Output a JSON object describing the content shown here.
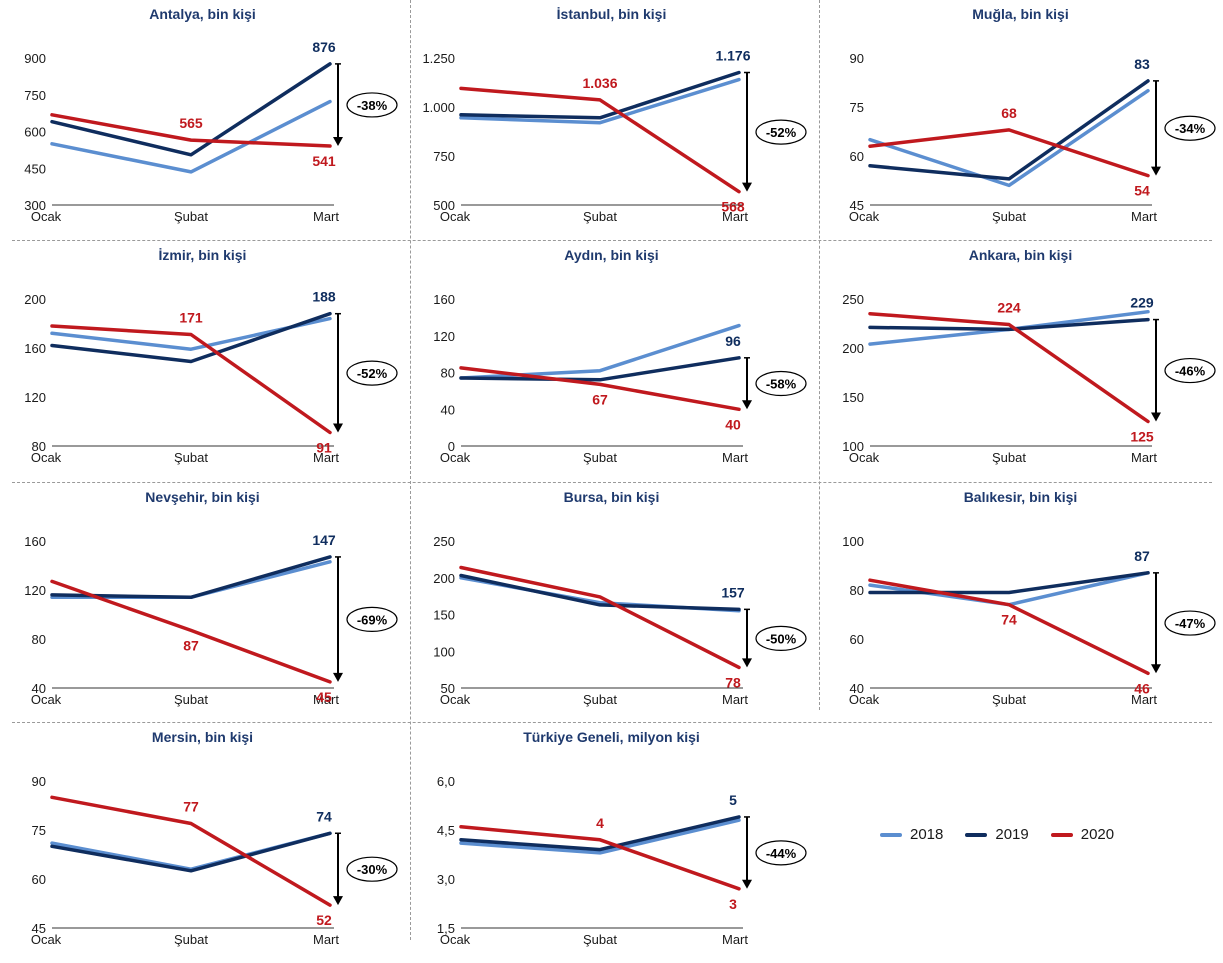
{
  "colors": {
    "s2018": "#5b8ed0",
    "s2019": "#0f2d5e",
    "s2020": "#c0191e",
    "axis": "#333333",
    "title": "#1f3a6e"
  },
  "legend": [
    {
      "name": "2018",
      "color": "#5b8ed0"
    },
    {
      "name": "2019",
      "color": "#0f2d5e"
    },
    {
      "name": "2020",
      "color": "#c0191e"
    }
  ],
  "chart_data": [
    {
      "type": "line",
      "title": "Antalya, bin kişi",
      "categories": [
        "Ocak",
        "Şubat",
        "Mart"
      ],
      "yticks": [
        "300",
        "450",
        "600",
        "750",
        "900"
      ],
      "ylim": [
        300,
        900
      ],
      "series": [
        {
          "name": "2018",
          "values": [
            550,
            435,
            722
          ]
        },
        {
          "name": "2019",
          "values": [
            640,
            505,
            876
          ]
        },
        {
          "name": "2020",
          "values": [
            668,
            565,
            541
          ]
        }
      ],
      "labels": [
        {
          "series": 2,
          "index": 1,
          "text": "565"
        },
        {
          "series": 1,
          "index": 2,
          "text": "876"
        },
        {
          "series": 2,
          "index": 2,
          "text": "541"
        }
      ],
      "change": "-38%"
    },
    {
      "type": "line",
      "title": "İstanbul, bin kişi",
      "categories": [
        "Ocak",
        "Şubat",
        "Mart"
      ],
      "yticks": [
        "500",
        "750",
        "1.000",
        "1.250"
      ],
      "ylim": [
        500,
        1250
      ],
      "series": [
        {
          "name": "2018",
          "values": [
            945,
            920,
            1140
          ]
        },
        {
          "name": "2019",
          "values": [
            960,
            945,
            1176
          ]
        },
        {
          "name": "2020",
          "values": [
            1095,
            1036,
            568
          ]
        }
      ],
      "labels": [
        {
          "series": 2,
          "index": 1,
          "text": "1.036"
        },
        {
          "series": 1,
          "index": 2,
          "text": "1.176"
        },
        {
          "series": 2,
          "index": 2,
          "text": "568"
        }
      ],
      "change": "-52%"
    },
    {
      "type": "line",
      "title": "Muğla, bin kişi",
      "categories": [
        "Ocak",
        "Şubat",
        "Mart"
      ],
      "yticks": [
        "45",
        "60",
        "75",
        "90"
      ],
      "ylim": [
        45,
        90
      ],
      "series": [
        {
          "name": "2018",
          "values": [
            65,
            51,
            80
          ]
        },
        {
          "name": "2019",
          "values": [
            57,
            53,
            83
          ]
        },
        {
          "name": "2020",
          "values": [
            63,
            68,
            54
          ]
        }
      ],
      "labels": [
        {
          "series": 2,
          "index": 1,
          "text": "68"
        },
        {
          "series": 1,
          "index": 2,
          "text": "83"
        },
        {
          "series": 2,
          "index": 2,
          "text": "54"
        }
      ],
      "change": "-34%"
    },
    {
      "type": "line",
      "title": "İzmir, bin kişi",
      "categories": [
        "Ocak",
        "Şubat",
        "Mart"
      ],
      "yticks": [
        "80",
        "120",
        "160",
        "200"
      ],
      "ylim": [
        80,
        200
      ],
      "series": [
        {
          "name": "2018",
          "values": [
            172,
            159,
            184
          ]
        },
        {
          "name": "2019",
          "values": [
            162,
            149,
            188
          ]
        },
        {
          "name": "2020",
          "values": [
            178,
            171,
            91
          ]
        }
      ],
      "labels": [
        {
          "series": 2,
          "index": 1,
          "text": "171"
        },
        {
          "series": 1,
          "index": 2,
          "text": "188"
        },
        {
          "series": 2,
          "index": 2,
          "text": "91"
        }
      ],
      "change": "-52%"
    },
    {
      "type": "line",
      "title": "Aydın, bin kişi",
      "categories": [
        "Ocak",
        "Şubat",
        "Mart"
      ],
      "yticks": [
        "0",
        "40",
        "80",
        "120",
        "160"
      ],
      "ylim": [
        0,
        160
      ],
      "series": [
        {
          "name": "2018",
          "values": [
            74,
            82,
            131
          ]
        },
        {
          "name": "2019",
          "values": [
            74,
            72,
            96
          ]
        },
        {
          "name": "2020",
          "values": [
            85,
            67,
            40
          ]
        }
      ],
      "labels": [
        {
          "series": 2,
          "index": 1,
          "text": "67"
        },
        {
          "series": 1,
          "index": 2,
          "text": "96"
        },
        {
          "series": 2,
          "index": 2,
          "text": "40"
        }
      ],
      "change": "-58%"
    },
    {
      "type": "line",
      "title": "Ankara, bin kişi",
      "categories": [
        "Ocak",
        "Şubat",
        "Mart"
      ],
      "yticks": [
        "100",
        "150",
        "200",
        "250"
      ],
      "ylim": [
        100,
        250
      ],
      "series": [
        {
          "name": "2018",
          "values": [
            204,
            219,
            237
          ]
        },
        {
          "name": "2019",
          "values": [
            221,
            219,
            229
          ]
        },
        {
          "name": "2020",
          "values": [
            235,
            224,
            125
          ]
        }
      ],
      "labels": [
        {
          "series": 2,
          "index": 1,
          "text": "224"
        },
        {
          "series": 1,
          "index": 2,
          "text": "229"
        },
        {
          "series": 2,
          "index": 2,
          "text": "125"
        }
      ],
      "change": "-46%"
    },
    {
      "type": "line",
      "title": "Nevşehir, bin kişi",
      "categories": [
        "Ocak",
        "Şubat",
        "Mart"
      ],
      "yticks": [
        "40",
        "80",
        "120",
        "160"
      ],
      "ylim": [
        40,
        160
      ],
      "series": [
        {
          "name": "2018",
          "values": [
            114,
            114,
            143
          ]
        },
        {
          "name": "2019",
          "values": [
            116,
            114,
            147
          ]
        },
        {
          "name": "2020",
          "values": [
            127,
            87,
            45
          ]
        }
      ],
      "labels": [
        {
          "series": 2,
          "index": 1,
          "text": "87"
        },
        {
          "series": 1,
          "index": 2,
          "text": "147"
        },
        {
          "series": 2,
          "index": 2,
          "text": "45"
        }
      ],
      "change": "-69%"
    },
    {
      "type": "line",
      "title": "Bursa, bin kişi",
      "categories": [
        "Ocak",
        "Şubat",
        "Mart"
      ],
      "yticks": [
        "50",
        "100",
        "150",
        "200",
        "250"
      ],
      "ylim": [
        50,
        250
      ],
      "series": [
        {
          "name": "2018",
          "values": [
            200,
            166,
            155
          ]
        },
        {
          "name": "2019",
          "values": [
            203,
            163,
            157
          ]
        },
        {
          "name": "2020",
          "values": [
            214,
            174,
            78
          ]
        }
      ],
      "labels": [
        {
          "series": 1,
          "index": 2,
          "text": "157"
        },
        {
          "series": 2,
          "index": 2,
          "text": "78"
        }
      ],
      "change": "-50%"
    },
    {
      "type": "line",
      "title": "Balıkesir, bin kişi",
      "categories": [
        "Ocak",
        "Şubat",
        "Mart"
      ],
      "yticks": [
        "40",
        "60",
        "80",
        "100"
      ],
      "ylim": [
        40,
        100
      ],
      "series": [
        {
          "name": "2018",
          "values": [
            82,
            74,
            87
          ]
        },
        {
          "name": "2019",
          "values": [
            79,
            79,
            87
          ]
        },
        {
          "name": "2020",
          "values": [
            84,
            74,
            46
          ]
        }
      ],
      "labels": [
        {
          "series": 2,
          "index": 1,
          "text": "74"
        },
        {
          "series": 1,
          "index": 2,
          "text": "87"
        },
        {
          "series": 2,
          "index": 2,
          "text": "46"
        }
      ],
      "change": "-47%"
    },
    {
      "type": "line",
      "title": "Mersin, bin kişi",
      "categories": [
        "Ocak",
        "Şubat",
        "Mart"
      ],
      "yticks": [
        "45",
        "60",
        "75",
        "90"
      ],
      "ylim": [
        45,
        90
      ],
      "series": [
        {
          "name": "2018",
          "values": [
            71,
            63,
            74
          ]
        },
        {
          "name": "2019",
          "values": [
            70,
            62.5,
            74
          ]
        },
        {
          "name": "2020",
          "values": [
            85,
            77,
            52
          ]
        }
      ],
      "labels": [
        {
          "series": 2,
          "index": 1,
          "text": "77"
        },
        {
          "series": 1,
          "index": 2,
          "text": "74"
        },
        {
          "series": 2,
          "index": 2,
          "text": "52"
        }
      ],
      "change": "-30%"
    },
    {
      "type": "line",
      "title": "Türkiye Geneli, milyon kişi",
      "categories": [
        "Ocak",
        "Şubat",
        "Mart"
      ],
      "yticks": [
        "1,5",
        "3,0",
        "4,5",
        "6,0"
      ],
      "ylim": [
        1.5,
        6.0
      ],
      "series": [
        {
          "name": "2018",
          "values": [
            4.1,
            3.8,
            4.8
          ]
        },
        {
          "name": "2019",
          "values": [
            4.2,
            3.9,
            4.9
          ]
        },
        {
          "name": "2020",
          "values": [
            4.6,
            4.2,
            2.7
          ]
        }
      ],
      "labels": [
        {
          "series": 2,
          "index": 1,
          "text": "4"
        },
        {
          "series": 1,
          "index": 2,
          "text": "5"
        },
        {
          "series": 2,
          "index": 2,
          "text": "3"
        }
      ],
      "change": "-44%"
    }
  ]
}
